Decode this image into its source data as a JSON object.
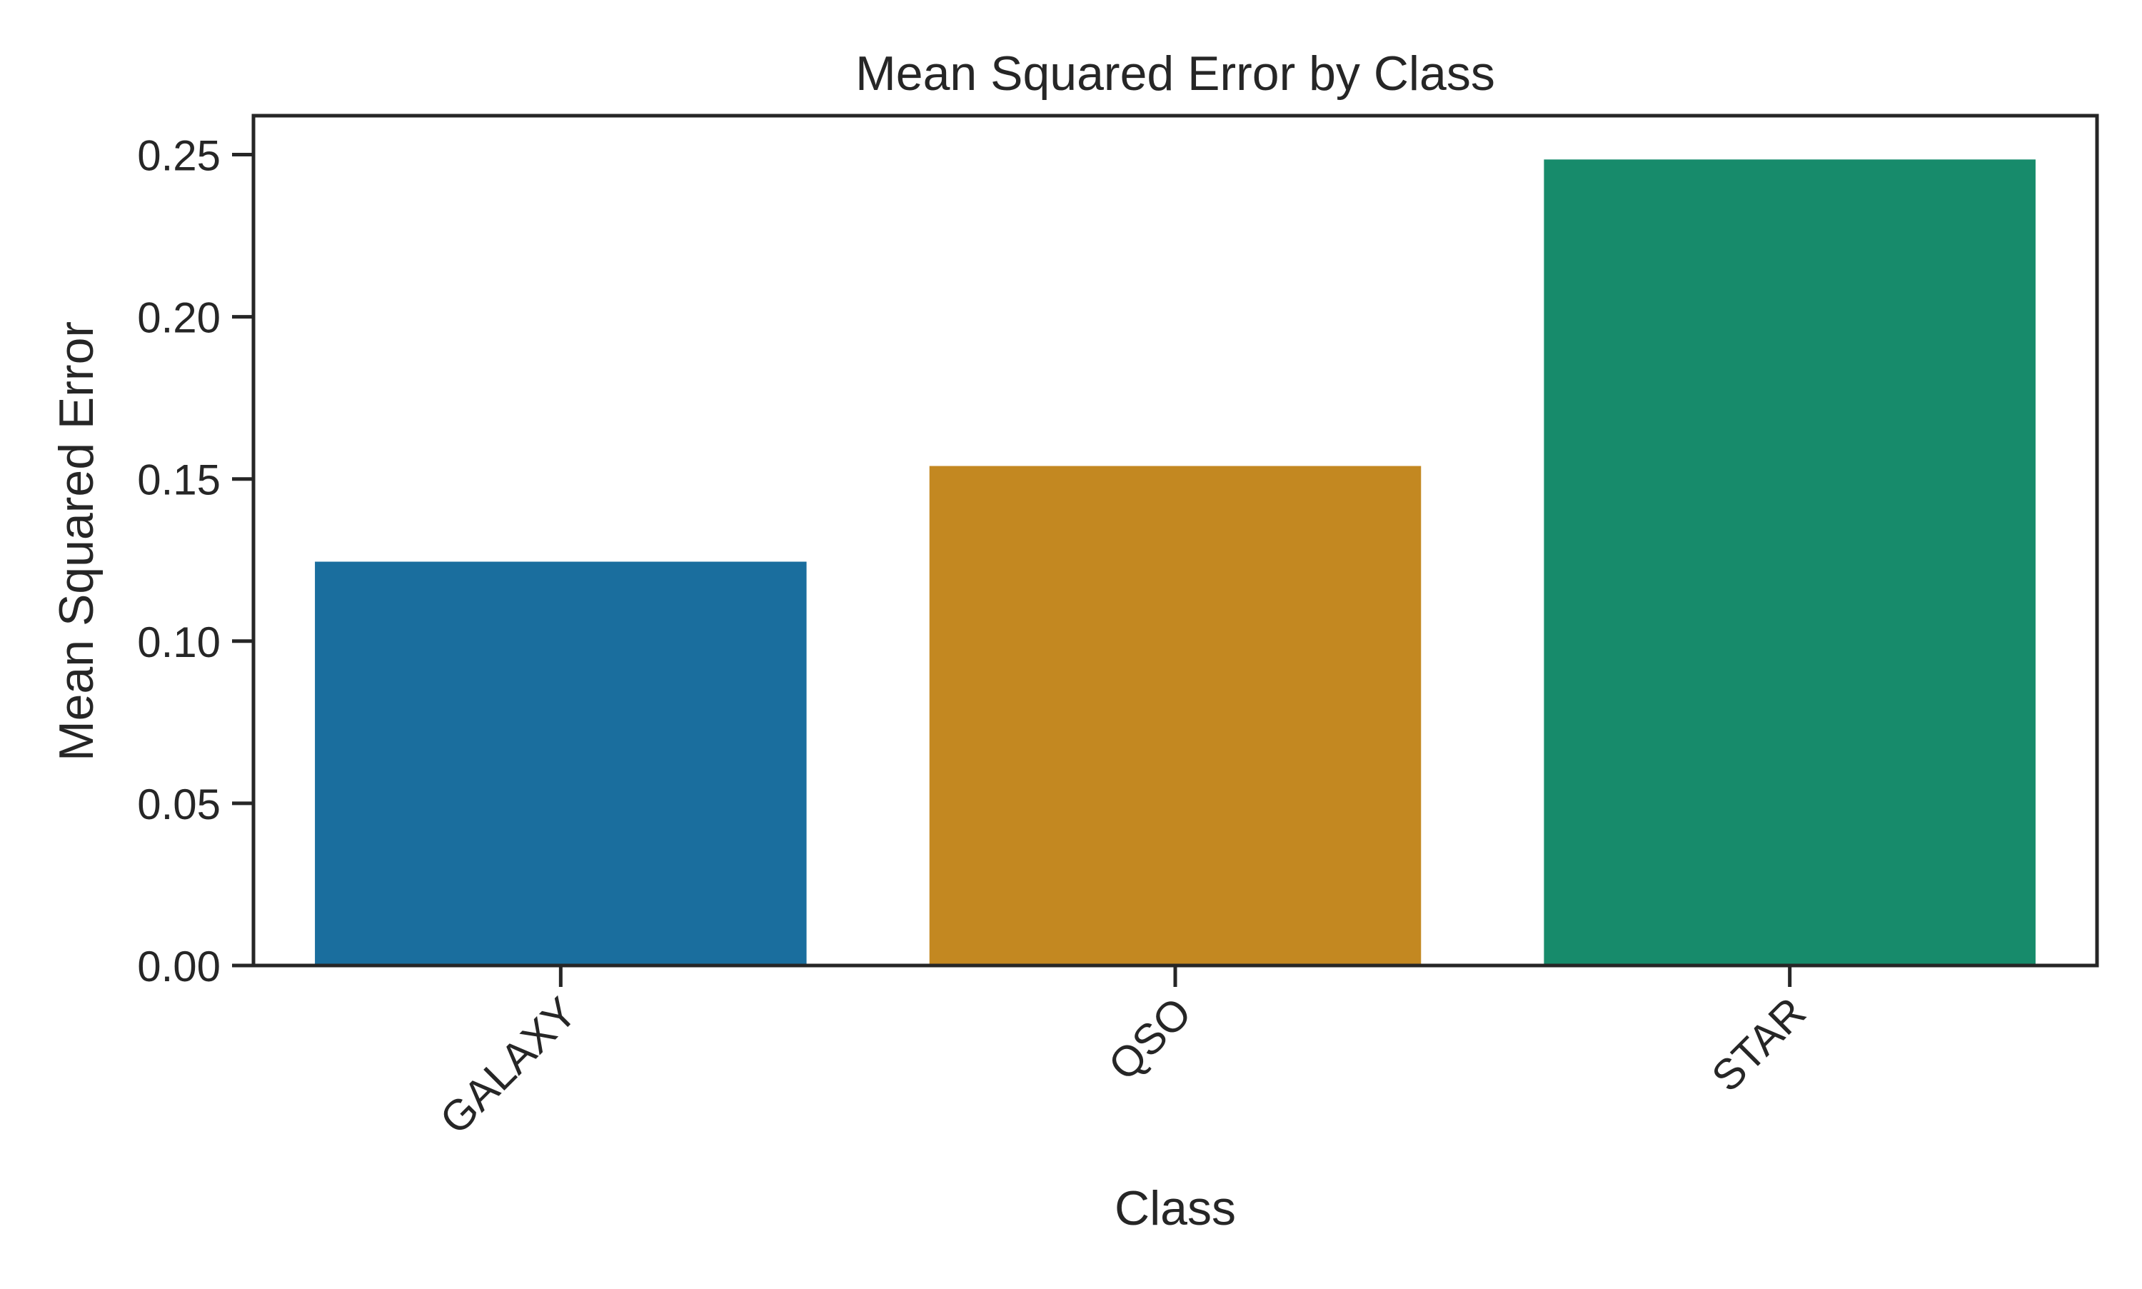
{
  "chart_data": {
    "type": "bar",
    "title": "Mean Squared Error by Class",
    "xlabel": "Class",
    "ylabel": "Mean Squared Error",
    "categories": [
      "GALAXY",
      "QSO",
      "STAR"
    ],
    "values": [
      0.1245,
      0.154,
      0.2485
    ],
    "colors": [
      "#1a6e9e",
      "#c38821",
      "#178b6b"
    ],
    "ylim": [
      0,
      0.262
    ],
    "yticks": [
      0.0,
      0.05,
      0.1,
      0.15,
      0.2,
      0.25
    ],
    "ytick_labels": [
      "0.00",
      "0.05",
      "0.10",
      "0.15",
      "0.20",
      "0.25"
    ],
    "grid": false,
    "legend": "none",
    "xtick_rotation_deg": 45
  }
}
